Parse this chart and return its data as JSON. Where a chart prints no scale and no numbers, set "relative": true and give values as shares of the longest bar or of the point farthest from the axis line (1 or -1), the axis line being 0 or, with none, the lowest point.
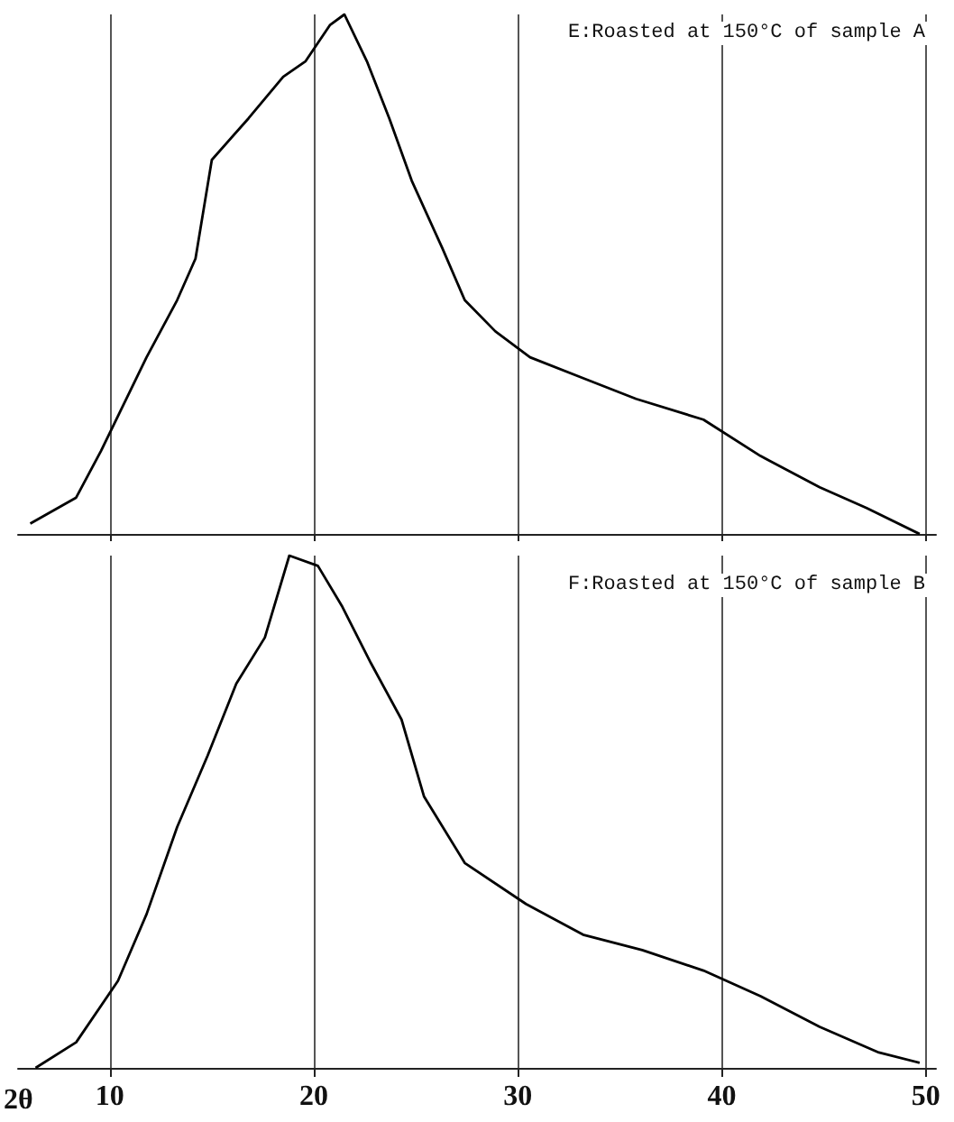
{
  "chart_data": [
    {
      "type": "line",
      "title": "E:Roasted at 150°C of sample A",
      "relative": true,
      "xlim": [
        5.5,
        50.5
      ],
      "xticks": [
        10,
        20,
        30,
        40,
        50
      ],
      "tick_labels": false,
      "grid": "x",
      "marker": "none",
      "series": [
        {
          "color": "#000000",
          "x": [
            6.1,
            8.35,
            9.57,
            11.8,
            13.3,
            14.2,
            15.0,
            16.8,
            18.5,
            19.6,
            20.8,
            21.5,
            22.6,
            23.7,
            24.8,
            26.3,
            27.4,
            28.9,
            30.6,
            33.2,
            35.8,
            39.1,
            41.9,
            44.8,
            47.1,
            49.7
          ],
          "values": [
            0.02,
            0.07,
            0.16,
            0.34,
            0.45,
            0.53,
            0.72,
            0.8,
            0.88,
            0.91,
            0.98,
            1.0,
            0.91,
            0.8,
            0.68,
            0.55,
            0.45,
            0.39,
            0.34,
            0.3,
            0.26,
            0.22,
            0.15,
            0.09,
            0.05,
            0
          ]
        }
      ]
    },
    {
      "type": "line",
      "title": "F:Roasted at 150°C of sample B",
      "xlabel": "2θ",
      "relative": true,
      "xlim": [
        5.5,
        50.5
      ],
      "xticks": [
        10,
        20,
        30,
        40,
        50
      ],
      "tick_labels": "x",
      "grid": "x",
      "marker": "none",
      "series": [
        {
          "color": "#000000",
          "x": [
            6.36,
            8.35,
            10.4,
            11.8,
            13.3,
            14.8,
            16.2,
            17.6,
            18.8,
            20.2,
            21.4,
            22.8,
            24.3,
            25.4,
            27.4,
            30.4,
            33.2,
            36.1,
            39.1,
            41.9,
            44.8,
            47.7,
            49.7
          ],
          "values": [
            0,
            0.05,
            0.17,
            0.3,
            0.47,
            0.61,
            0.75,
            0.84,
            1.0,
            0.98,
            0.9,
            0.79,
            0.68,
            0.53,
            0.4,
            0.32,
            0.26,
            0.23,
            0.19,
            0.14,
            0.08,
            0.03,
            0.01
          ]
        }
      ]
    }
  ]
}
